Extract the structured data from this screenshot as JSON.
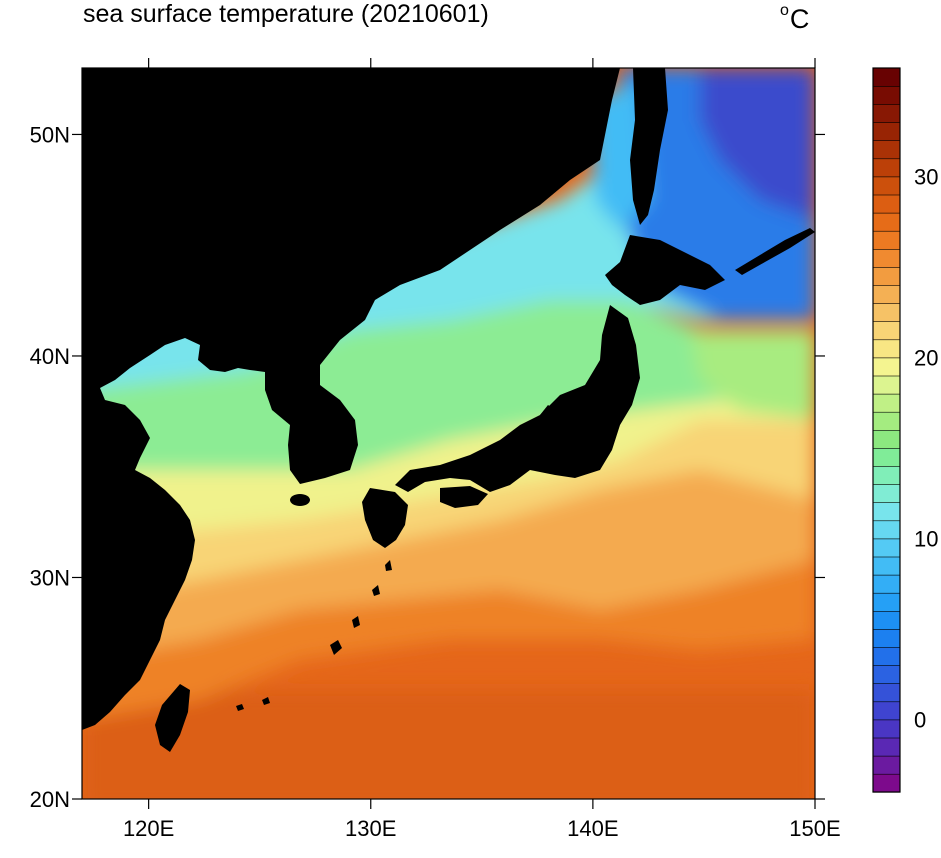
{
  "title": "sea surface temperature (20210601)",
  "unit_symbol": "o",
  "unit_letter": "C",
  "map": {
    "lon_range": [
      117,
      150
    ],
    "lat_range": [
      20,
      53
    ],
    "lat_ticks": [
      {
        "value": 20,
        "label": "20N"
      },
      {
        "value": 30,
        "label": "30N"
      },
      {
        "value": 40,
        "label": "40N"
      },
      {
        "value": 50,
        "label": "50N"
      }
    ],
    "lon_ticks": [
      {
        "value": 120,
        "label": "120E"
      },
      {
        "value": 130,
        "label": "130E"
      },
      {
        "value": 140,
        "label": "140E"
      },
      {
        "value": 150,
        "label": "150E"
      }
    ],
    "land_color": "#000000"
  },
  "colorbar": {
    "min": -4,
    "max": 36,
    "step": 1,
    "label_values": [
      0,
      10,
      20,
      30
    ],
    "labels": [
      "0",
      "10",
      "20",
      "30"
    ],
    "colors": [
      "#7d0a8c",
      "#6b1aa0",
      "#5a28b4",
      "#4a36c4",
      "#3f44d0",
      "#3552d8",
      "#2b62e2",
      "#2270ea",
      "#1c80f0",
      "#1d90f4",
      "#25a0f6",
      "#33aef6",
      "#42bcf5",
      "#54caf4",
      "#66d8f1",
      "#78e4ec",
      "#80ecd4",
      "#80eeb8",
      "#80ec98",
      "#8ce880",
      "#a4ec80",
      "#c0f086",
      "#dcf490",
      "#f4f490",
      "#f8e684",
      "#f8d476",
      "#f6c266",
      "#f4b054",
      "#f29c40",
      "#f08a30",
      "#ec7a22",
      "#e66c18",
      "#dc5e12",
      "#cc500c",
      "#bc4008",
      "#aa3206",
      "#982404",
      "#881804",
      "#780c02",
      "#680202"
    ]
  }
}
